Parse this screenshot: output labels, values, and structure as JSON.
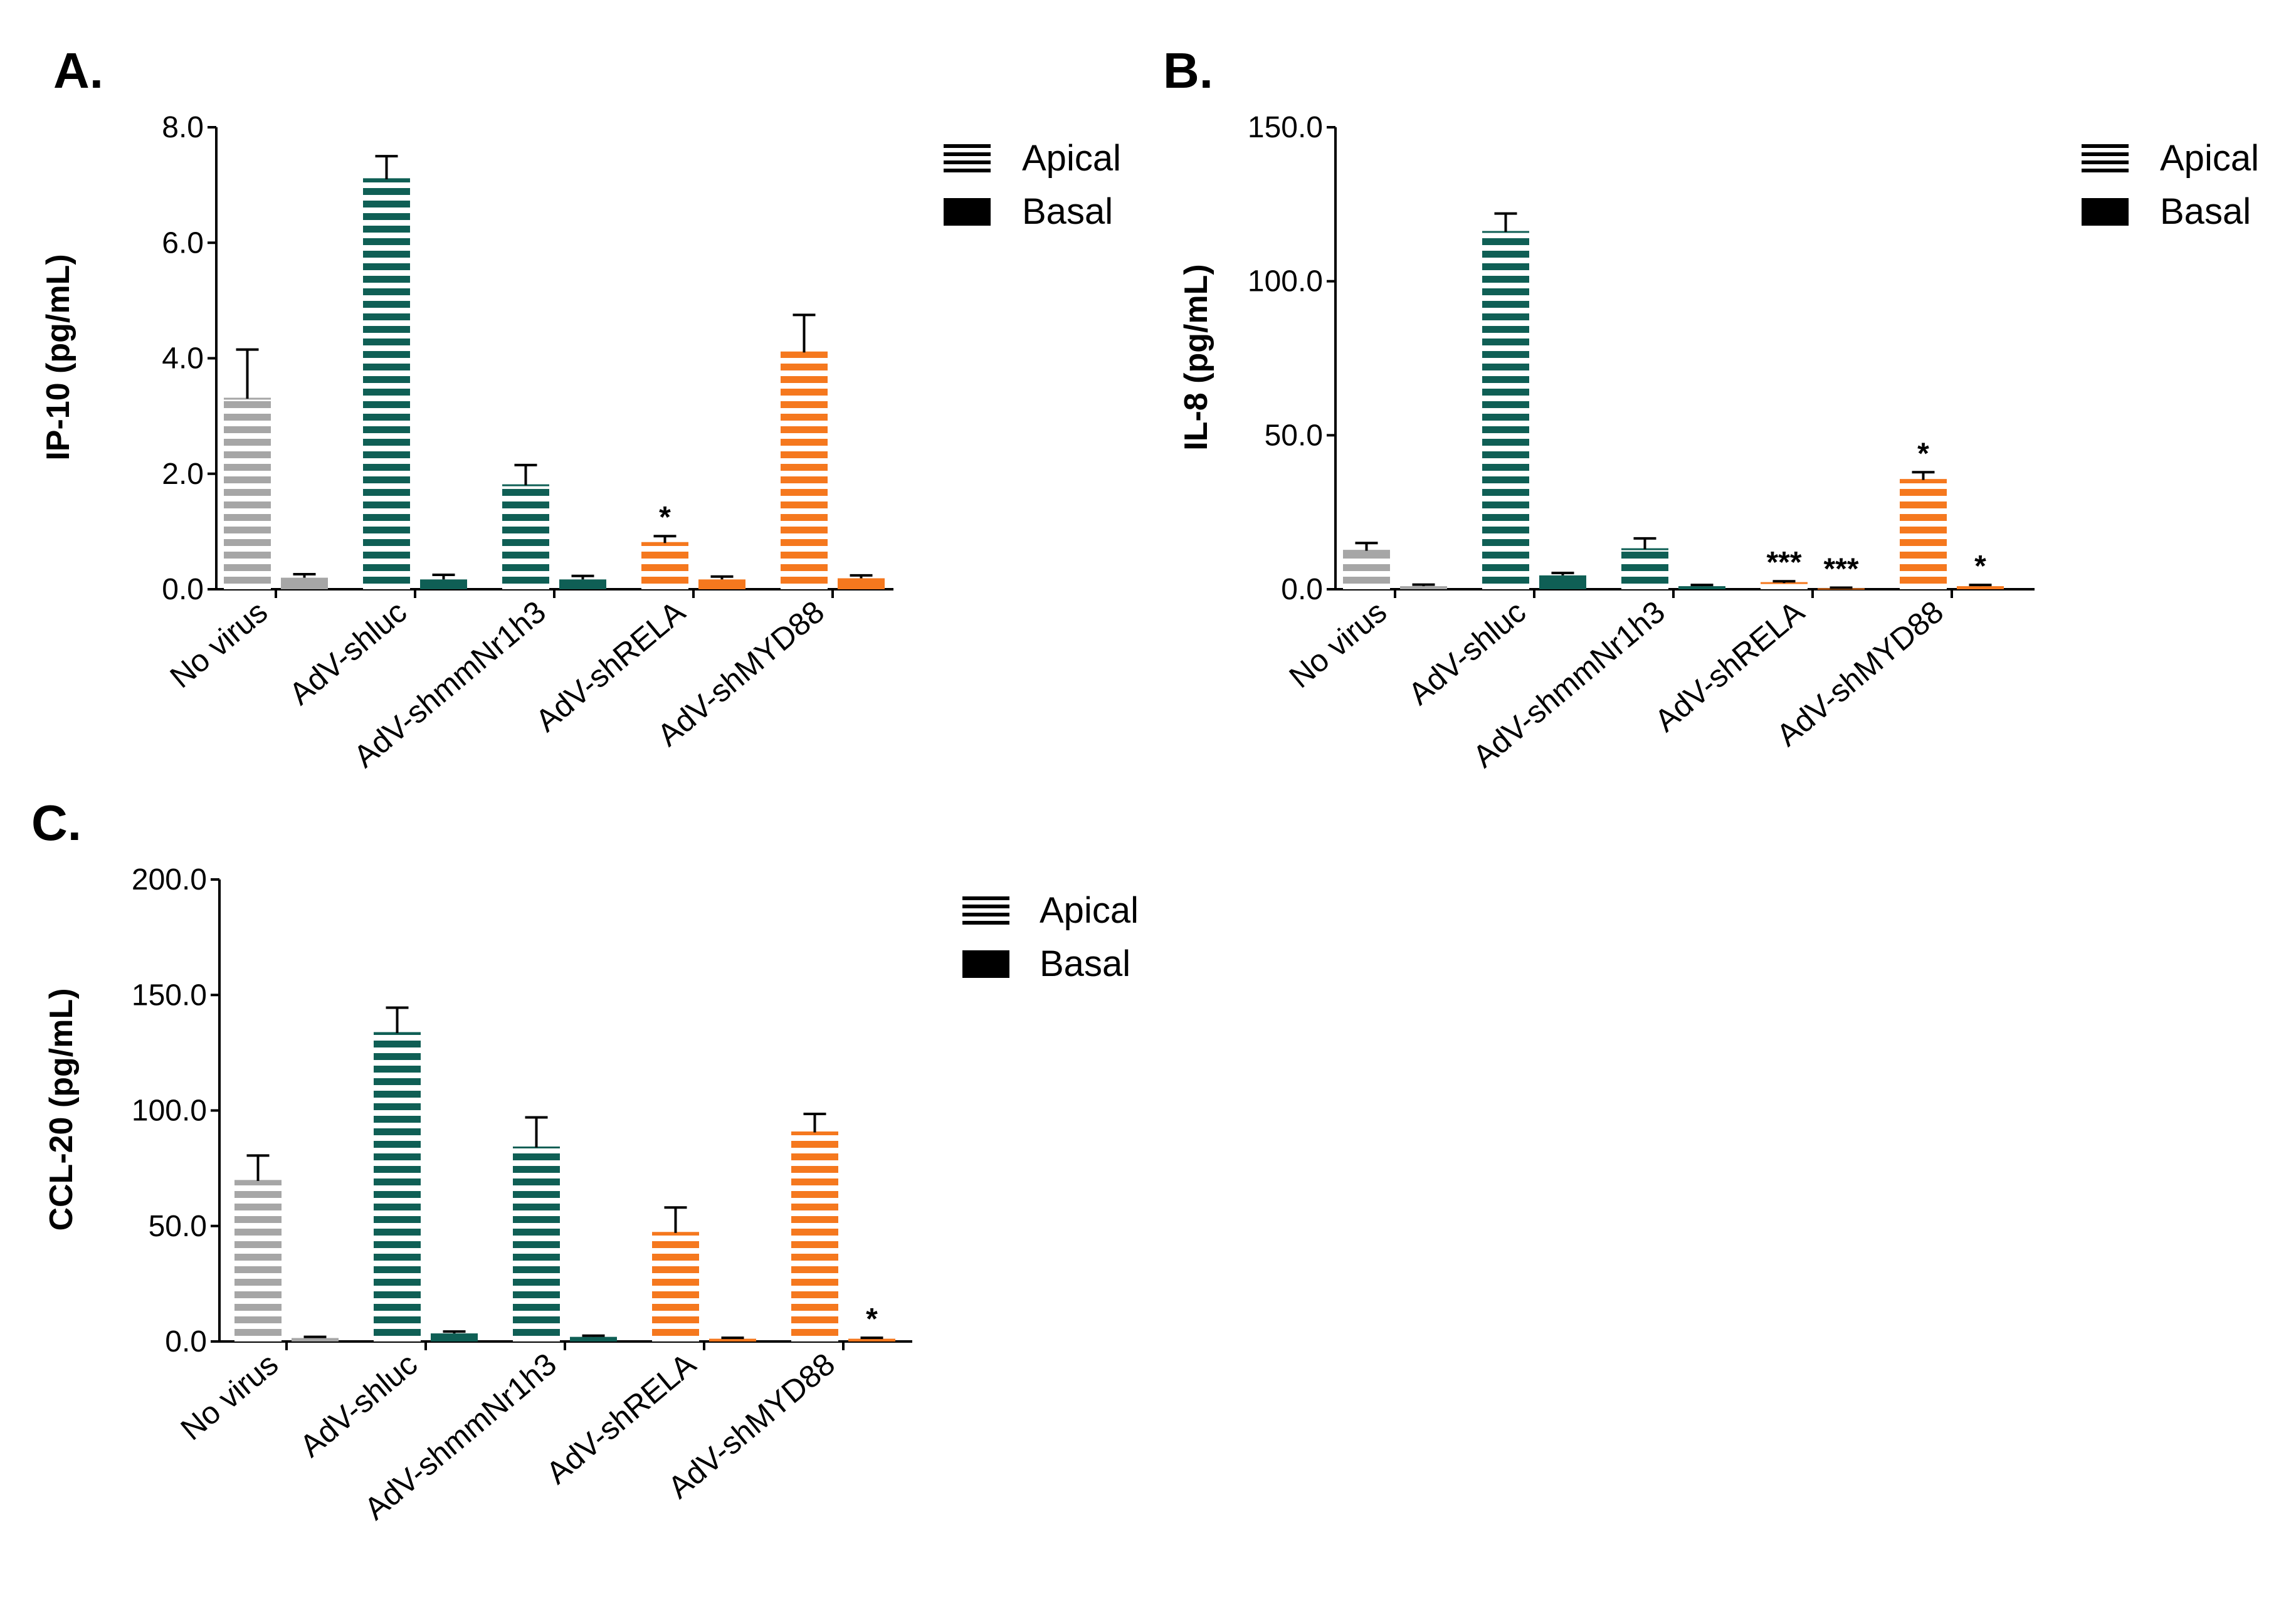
{
  "legend": {
    "apical": "Apical",
    "basal": "Basal"
  },
  "colors": {
    "no_virus": "#a6a6a6",
    "teal": "#0f5f55",
    "orange": "#f5781e",
    "axis": "#000000"
  },
  "chart_data": [
    {
      "panel": "A.",
      "type": "bar",
      "ylabel": "IP-10 (pg/mL)",
      "ylim": [
        0,
        8
      ],
      "yticks": [
        "0.0",
        "2.0",
        "4.0",
        "6.0",
        "8.0"
      ],
      "categories": [
        "No virus",
        "AdV-shluc",
        "AdV-shmmNr1h3",
        "AdV-shRELA",
        "AdV-shMYD88"
      ],
      "series": [
        {
          "name": "Apical",
          "values": [
            3.3,
            7.1,
            1.8,
            0.8,
            4.1
          ],
          "errors": [
            0.85,
            0.4,
            0.35,
            0.12,
            0.65
          ],
          "sig": [
            "",
            "",
            "",
            "*",
            ""
          ]
        },
        {
          "name": "Basal",
          "values": [
            0.2,
            0.17,
            0.17,
            0.17,
            0.19
          ],
          "errors": [
            0.06,
            0.08,
            0.06,
            0.05,
            0.05
          ],
          "sig": [
            "",
            "",
            "",
            "",
            ""
          ]
        }
      ]
    },
    {
      "panel": "B.",
      "type": "bar",
      "ylabel": "IL-8 (pg/mL)",
      "ylim": [
        0,
        150
      ],
      "yticks": [
        "0.0",
        "50.0",
        "100.0",
        "150.0"
      ],
      "categories": [
        "No virus",
        "AdV-shluc",
        "AdV-shmmNr1h3",
        "AdV-shRELA",
        "AdV-shMYD88"
      ],
      "series": [
        {
          "name": "Apical",
          "values": [
            12.5,
            116,
            13,
            2,
            35.5
          ],
          "errors": [
            2.5,
            6,
            3.5,
            0.6,
            2.5
          ],
          "sig": [
            "",
            "",
            "",
            "***",
            "*"
          ]
        },
        {
          "name": "Basal",
          "values": [
            1,
            4.5,
            1,
            0.3,
            1
          ],
          "errors": [
            0.5,
            0.8,
            0.4,
            0.2,
            0.4
          ],
          "sig": [
            "",
            "",
            "",
            "***",
            "*"
          ]
        }
      ]
    },
    {
      "panel": "C.",
      "type": "bar",
      "ylabel": "CCL-20 (pg/mL)",
      "ylim": [
        0,
        200
      ],
      "yticks": [
        "0.0",
        "50.0",
        "100.0",
        "150.0",
        "200.0"
      ],
      "categories": [
        "No virus",
        "AdV-shluc",
        "AdV-shmmNr1h3",
        "AdV-shRELA",
        "AdV-shMYD88"
      ],
      "series": [
        {
          "name": "Apical",
          "values": [
            69.5,
            133.5,
            84,
            47,
            90.5
          ],
          "errors": [
            11,
            11,
            13,
            11,
            8
          ],
          "sig": [
            "",
            "",
            "",
            "",
            ""
          ]
        },
        {
          "name": "Basal",
          "values": [
            1.5,
            3.5,
            2,
            1.2,
            1.2
          ],
          "errors": [
            0.5,
            0.8,
            0.5,
            0.4,
            0.4
          ],
          "sig": [
            "",
            "",
            "",
            "",
            "*"
          ]
        }
      ]
    }
  ]
}
